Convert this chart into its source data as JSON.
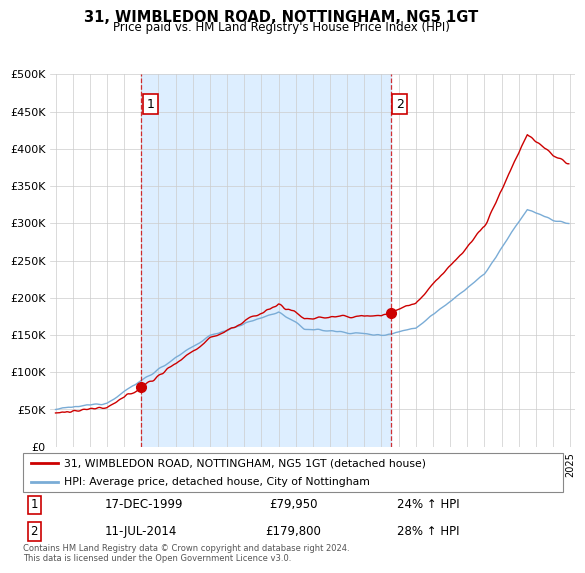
{
  "title": "31, WIMBLEDON ROAD, NOTTINGHAM, NG5 1GT",
  "subtitle": "Price paid vs. HM Land Registry's House Price Index (HPI)",
  "ylabel_ticks": [
    "£0",
    "£50K",
    "£100K",
    "£150K",
    "£200K",
    "£250K",
    "£300K",
    "£350K",
    "£400K",
    "£450K",
    "£500K"
  ],
  "ytick_values": [
    0,
    50000,
    100000,
    150000,
    200000,
    250000,
    300000,
    350000,
    400000,
    450000,
    500000
  ],
  "ylim": [
    0,
    500000
  ],
  "sale1_date": "17-DEC-1999",
  "sale1_price": 79950,
  "sale1_hpi": "24% ↑ HPI",
  "sale1_label": "1",
  "sale1_x": 2000.0,
  "sale2_date": "11-JUL-2014",
  "sale2_price": 179800,
  "sale2_hpi": "28% ↑ HPI",
  "sale2_label": "2",
  "sale2_x": 2014.53,
  "line1_color": "#cc0000",
  "line2_color": "#7aacd6",
  "vline_color": "#cc0000",
  "shade_color": "#ddeeff",
  "grid_color": "#cccccc",
  "bg_color": "#ffffff",
  "legend_line1": "31, WIMBLEDON ROAD, NOTTINGHAM, NG5 1GT (detached house)",
  "legend_line2": "HPI: Average price, detached house, City of Nottingham",
  "footer": "Contains HM Land Registry data © Crown copyright and database right 2024.\nThis data is licensed under the Open Government Licence v3.0.",
  "xlim_start": 1994.7,
  "xlim_end": 2025.3
}
